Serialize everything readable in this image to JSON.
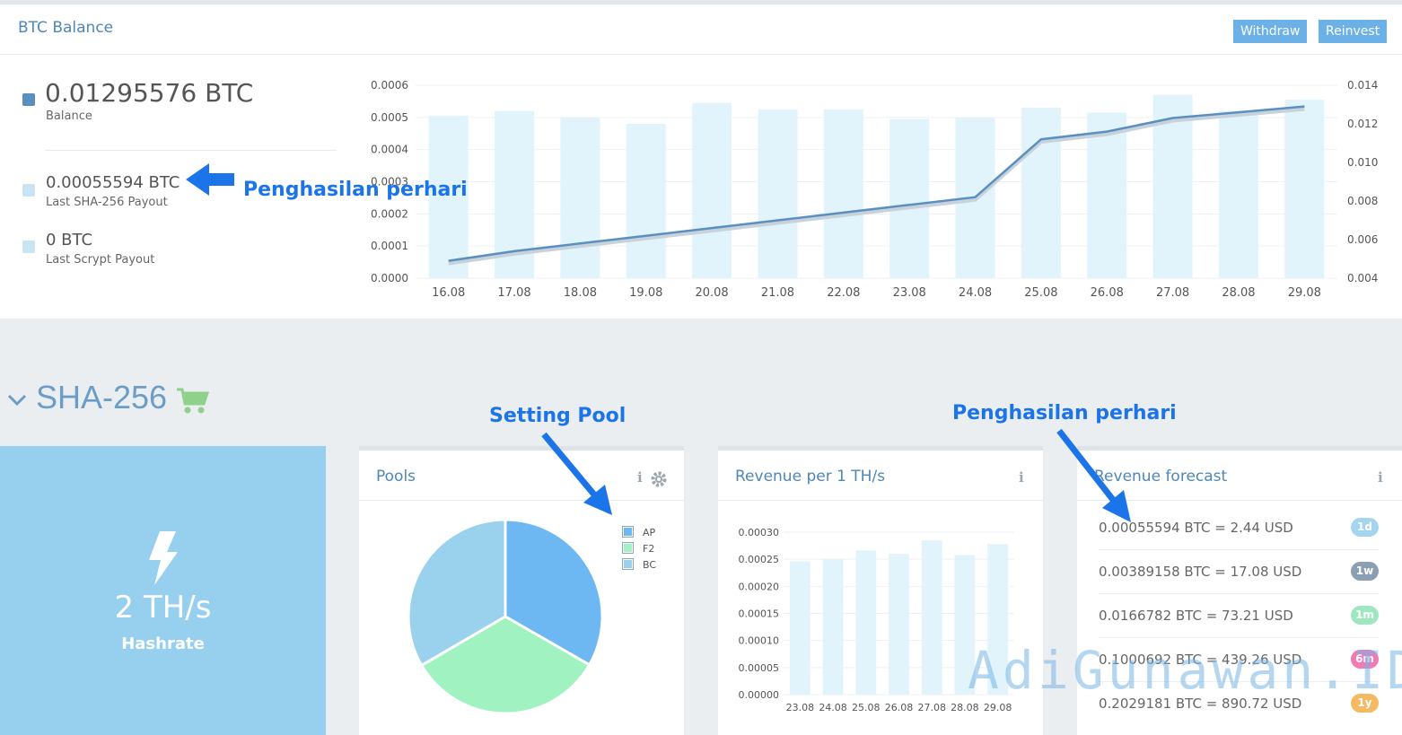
{
  "balance": {
    "title": "BTC Balance",
    "withdraw_label": "Withdraw",
    "reinvest_label": "Reinvest",
    "main_value": "0.01295576 BTC",
    "main_label": "Balance",
    "sha_value": "0.00055594 BTC",
    "sha_label": "Last SHA-256 Payout",
    "scrypt_value": "0 BTC",
    "scrypt_label": "Last Scrypt Payout",
    "colors": {
      "balance": "#5b8fbf",
      "payout": "#c9e4f3",
      "button": "#6bb1e8"
    }
  },
  "annotations": {
    "earning_top": "Penghasilan perhari",
    "setting_pool": "Setting Pool",
    "earning_right": "Penghasilan perhari",
    "watermark": "AdiGunawan.ID"
  },
  "section": {
    "title": "SHA-256",
    "cart_icon": "cart-icon",
    "toggle_icon": "chevron-down-icon"
  },
  "hashrate": {
    "value": "2 TH/s",
    "label": "Hashrate",
    "icon": "lightning-icon"
  },
  "pools": {
    "title": "Pools",
    "legend": [
      "AP",
      "F2",
      "BC"
    ],
    "colors": [
      "#6db7f2",
      "#a0f2c0",
      "#9ad2ee"
    ],
    "slices": [
      33.3,
      33.3,
      33.4
    ]
  },
  "revenue": {
    "title": "Revenue per 1 TH/s"
  },
  "forecast": {
    "title": "Revenue forecast",
    "rows": [
      {
        "text": "0.00055594 BTC = 2.44 USD",
        "badge": "1d",
        "color": "#a3d5f1"
      },
      {
        "text": "0.00389158 BTC = 17.08 USD",
        "badge": "1w",
        "color": "#8a9fb3"
      },
      {
        "text": "0.0166782 BTC = 73.21 USD",
        "badge": "1m",
        "color": "#9ee8c0"
      },
      {
        "text": "0.1000692 BTC = 439.26 USD",
        "badge": "6m",
        "color": "#f07ab5"
      },
      {
        "text": "0.2029181 BTC = 890.72 USD",
        "badge": "1y",
        "color": "#f5b962"
      }
    ]
  },
  "chart_data": [
    {
      "type": "bar",
      "categories": [
        "16.08",
        "17.08",
        "18.08",
        "19.08",
        "20.08",
        "21.08",
        "22.08",
        "23.08",
        "24.08",
        "25.08",
        "26.08",
        "27.08",
        "28.08",
        "29.08"
      ],
      "series": [
        {
          "values": [
            0.000505,
            0.00052,
            0.0005,
            0.00048,
            0.000545,
            0.000525,
            0.000525,
            0.000495,
            0.0005,
            0.00053,
            0.000515,
            0.00057,
            0.00052,
            0.000555
          ],
          "axis": "left"
        },
        {
          "values": [
            0.0049,
            0.0054,
            0.0058,
            0.0062,
            0.0066,
            0.007,
            0.0074,
            0.0078,
            0.0082,
            0.0112,
            0.0116,
            0.0123,
            0.0126,
            0.0129
          ],
          "axis": "right",
          "type": "line"
        }
      ],
      "ylim": [
        0,
        0.0006
      ],
      "y_ticks": [
        "0.0000",
        "0.0001",
        "0.0002",
        "0.0003",
        "0.0004",
        "0.0005",
        "0.0006"
      ],
      "y2lim": [
        0.004,
        0.014
      ],
      "y2_ticks": [
        "0.004",
        "0.006",
        "0.008",
        "0.010",
        "0.012",
        "0.014"
      ],
      "grid": true
    },
    {
      "type": "pie",
      "categories": [
        "AP",
        "F2",
        "BC"
      ],
      "values": [
        33.3,
        33.3,
        33.4
      ],
      "legend": "top-right"
    },
    {
      "type": "bar",
      "categories": [
        "23.08",
        "24.08",
        "25.08",
        "26.08",
        "27.08",
        "28.08",
        "29.08"
      ],
      "values": [
        0.000246,
        0.00025,
        0.000266,
        0.00026,
        0.000285,
        0.000258,
        0.000278
      ],
      "ylim": [
        0,
        0.0003
      ],
      "y_ticks": [
        "0.00000",
        "0.00005",
        "0.00010",
        "0.00015",
        "0.00020",
        "0.00025",
        "0.00030"
      ],
      "grid": true
    }
  ]
}
